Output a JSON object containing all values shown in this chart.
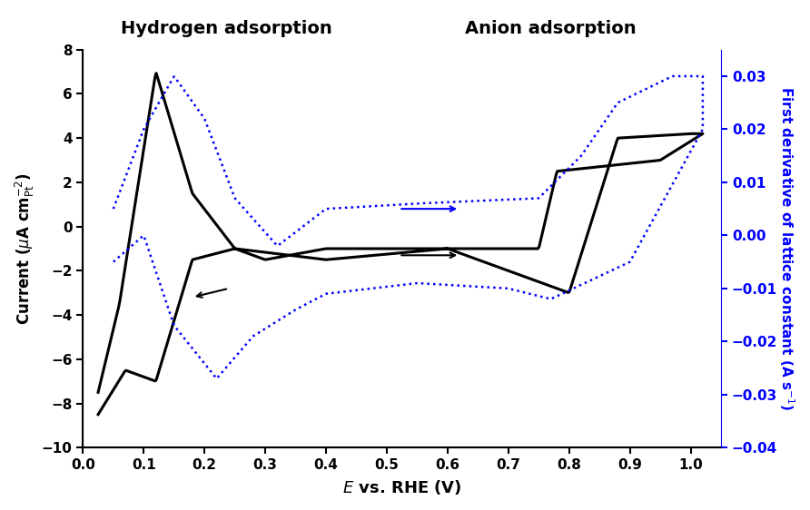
{
  "title_left": "Hydrogen adsorption",
  "title_right": "Anion adsorption",
  "xlabel": "E vs. RHE (V)",
  "ylabel_left": "Current (μA cm⁻²ₚₜ)",
  "ylabel_right": "First derivative of lattice constant (A s⁻¹)",
  "xlim": [
    0.0,
    1.05
  ],
  "ylim_left": [
    -10,
    8
  ],
  "ylim_right": [
    -0.04,
    0.035
  ],
  "xticks": [
    0.0,
    0.1,
    0.2,
    0.3,
    0.4,
    0.5,
    0.6,
    0.7,
    0.8,
    0.9,
    1.0
  ],
  "yticks_left": [
    -10,
    -8,
    -6,
    -4,
    -2,
    0,
    2,
    4,
    6,
    8
  ],
  "yticks_right": [
    -0.04,
    -0.03,
    -0.02,
    -0.01,
    0.0,
    0.01,
    0.02,
    0.03
  ],
  "black_line_color": "#000000",
  "blue_line_color": "#0000FF",
  "background_color": "#FFFFFF"
}
